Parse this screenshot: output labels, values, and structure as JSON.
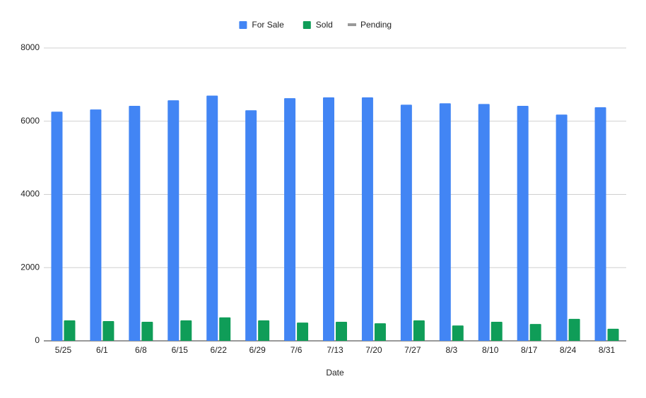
{
  "chart_data": {
    "type": "bar",
    "x_label": "Date",
    "categories": [
      "5/25",
      "6/1",
      "6/8",
      "6/15",
      "6/22",
      "6/29",
      "7/6",
      "7/13",
      "7/20",
      "7/27",
      "8/3",
      "8/10",
      "8/17",
      "8/24",
      "8/31"
    ],
    "series": [
      {
        "name": "For Sale",
        "color": "#4285f4",
        "type": "bar",
        "values": [
          6260,
          6320,
          6420,
          6570,
          6700,
          6300,
          6630,
          6650,
          6650,
          6450,
          6490,
          6470,
          6420,
          6180,
          6380
        ]
      },
      {
        "name": "Sold",
        "color": "#0f9d58",
        "type": "bar",
        "values": [
          560,
          540,
          520,
          560,
          640,
          560,
          500,
          520,
          480,
          560,
          420,
          520,
          460,
          600,
          330
        ]
      },
      {
        "name": "Pending",
        "color": "#999999",
        "type": "line",
        "values": [
          null,
          null,
          null,
          null,
          null,
          null,
          null,
          null,
          null,
          null,
          null,
          null,
          null,
          null,
          null
        ]
      }
    ],
    "ylim": [
      0,
      8000
    ],
    "yticks": [
      0,
      2000,
      4000,
      6000,
      8000
    ],
    "grid": true,
    "legend": "top"
  }
}
